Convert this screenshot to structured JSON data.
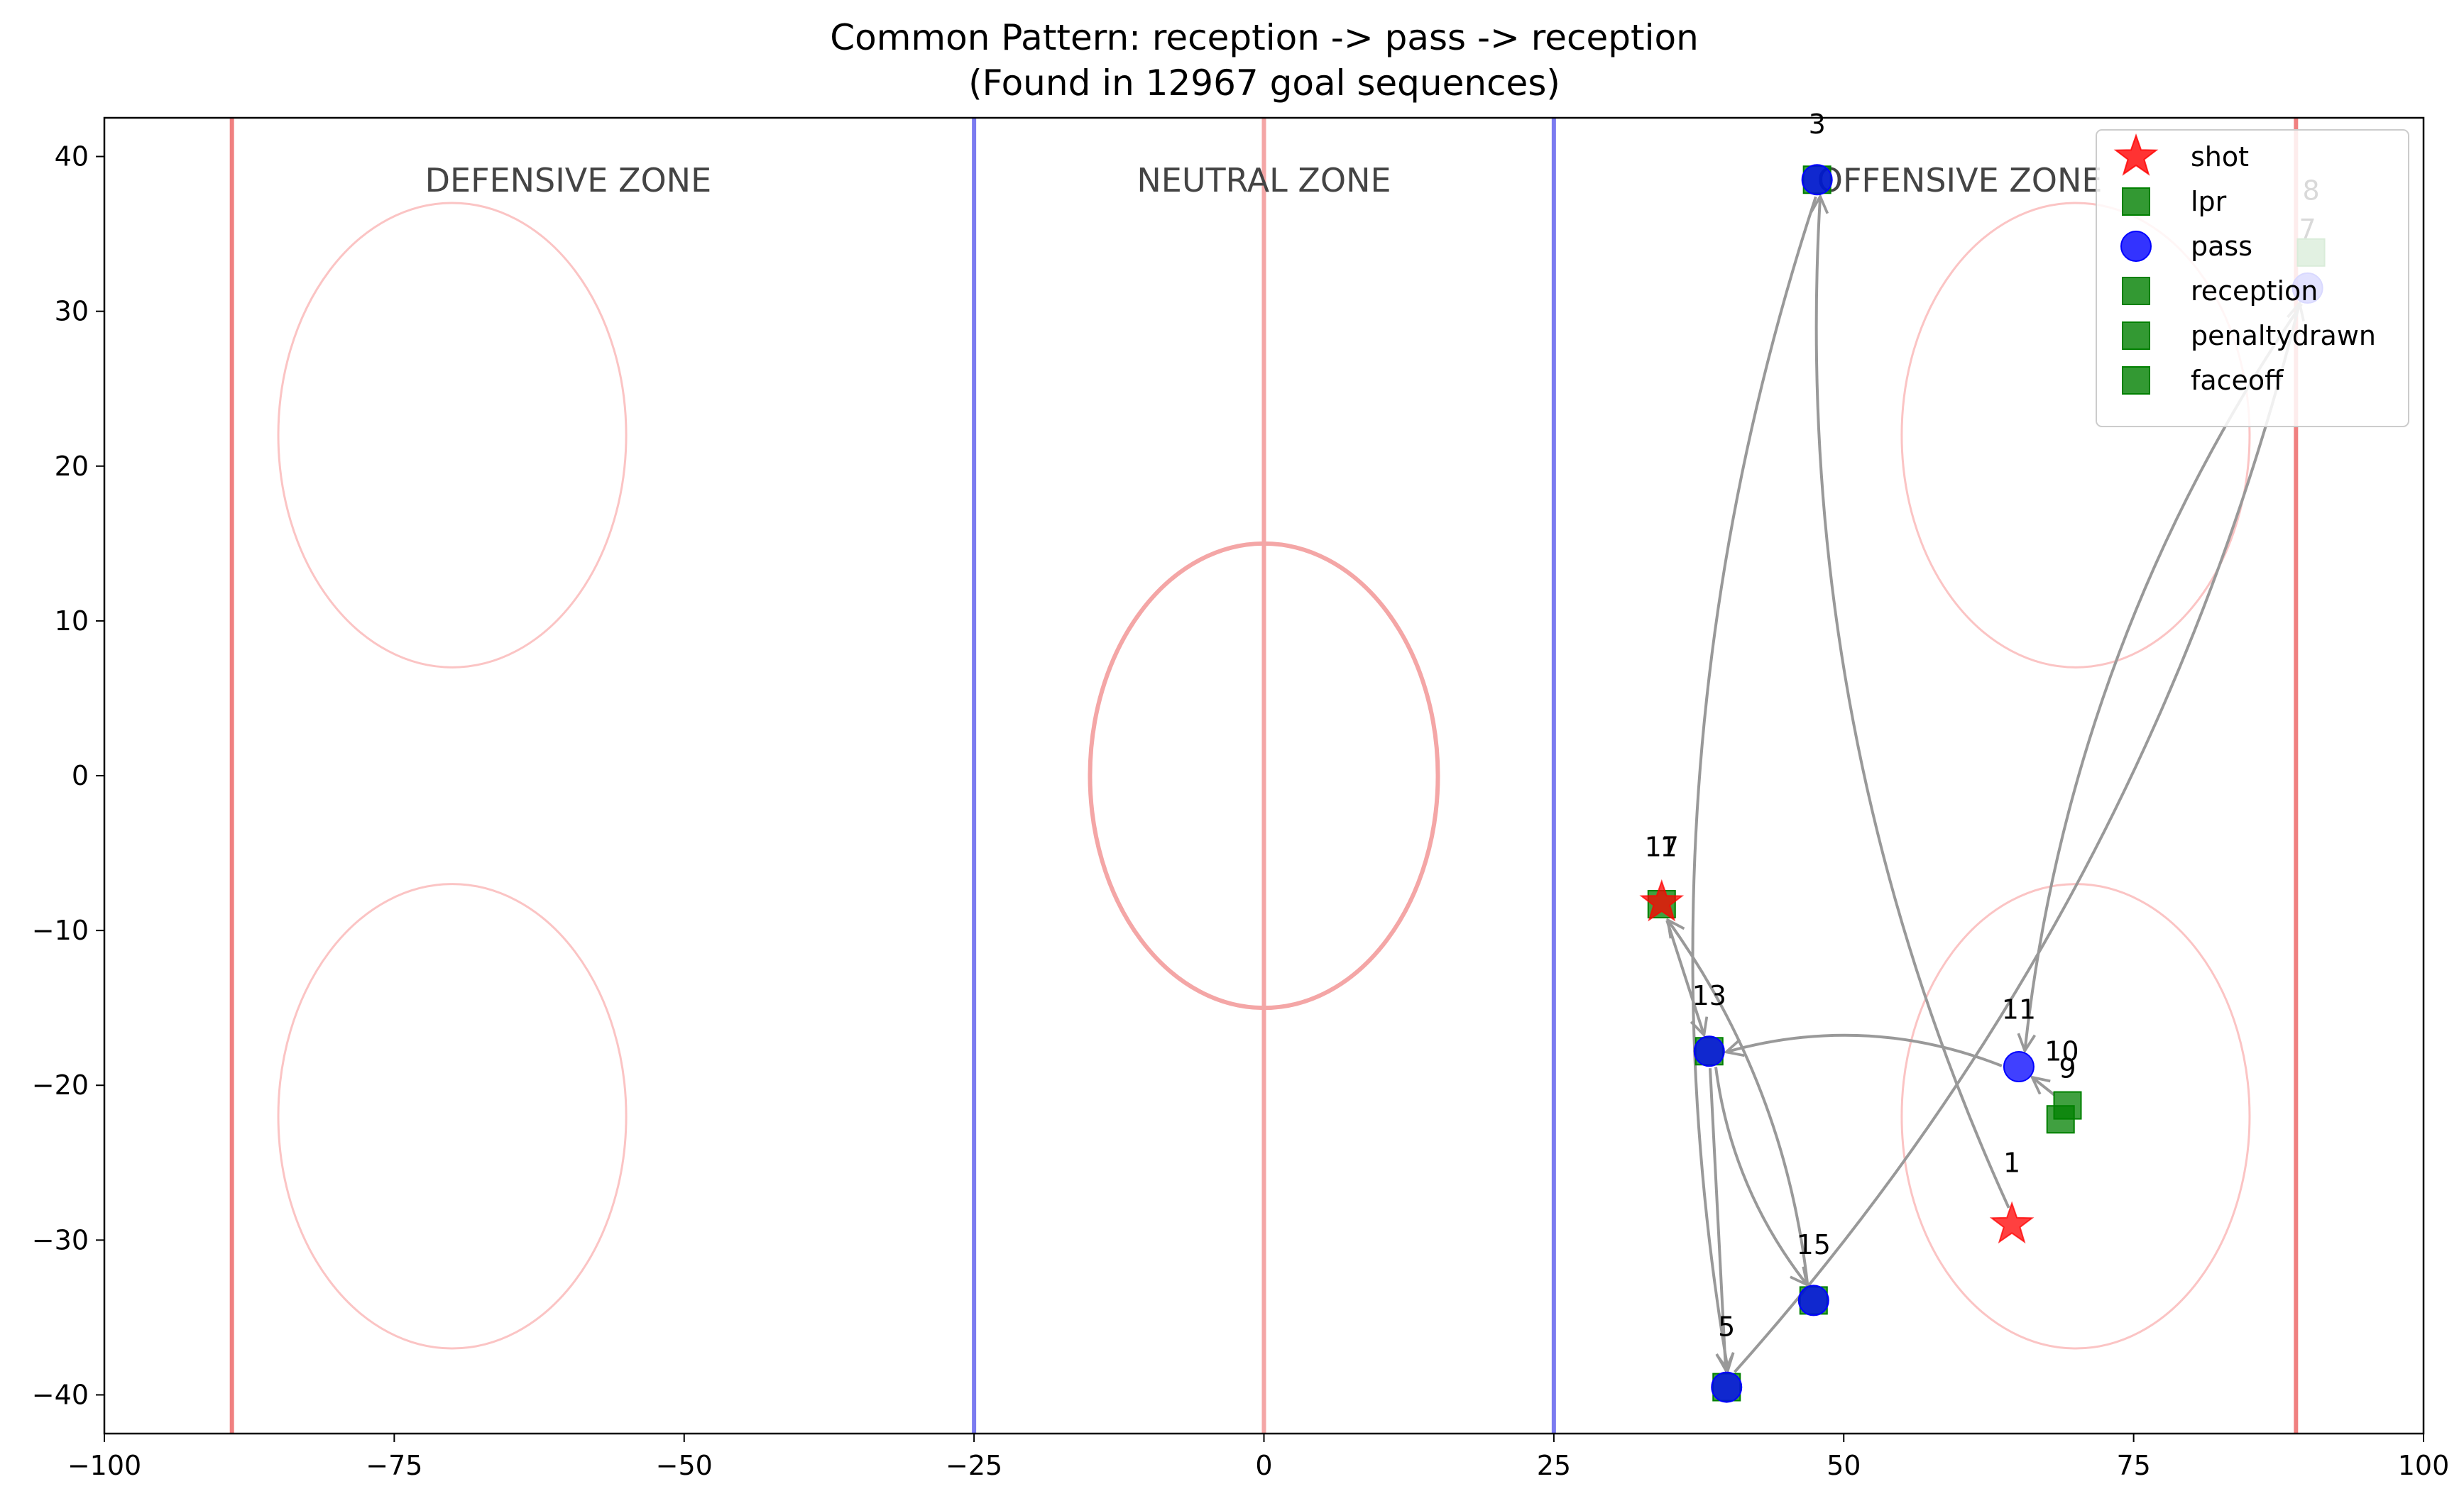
{
  "chart_data": {
    "type": "scatter",
    "title": "Common Pattern: reception -> pass -> reception",
    "subtitle": "(Found in 12967 goal sequences)",
    "xlabel": "",
    "ylabel": "",
    "xlim": [
      -100,
      100
    ],
    "ylim": [
      -42.5,
      42.5
    ],
    "x_ticks": [
      -100,
      -75,
      -50,
      -25,
      0,
      25,
      50,
      75,
      100
    ],
    "y_ticks": [
      -40,
      -30,
      -20,
      -10,
      0,
      10,
      20,
      30,
      40
    ],
    "x_tick_labels": [
      "−100",
      "−75",
      "−50",
      "−25",
      "0",
      "25",
      "50",
      "75",
      "100"
    ],
    "y_tick_labels": [
      "−40",
      "−30",
      "−20",
      "−10",
      "0",
      "10",
      "20",
      "30",
      "40"
    ],
    "grid": false,
    "legend_position": "top-right",
    "rink": {
      "goal_lines_x": [
        -89,
        89
      ],
      "blue_lines_x": [
        -25,
        25
      ],
      "center_line_x": 0,
      "center_circle": {
        "cx": 0,
        "cy": 0,
        "r": 15
      },
      "faceoff_circles": [
        {
          "cx": -70,
          "cy": 22,
          "r": 15
        },
        {
          "cx": -70,
          "cy": -22,
          "r": 15
        },
        {
          "cx": 70,
          "cy": 22,
          "r": 15
        },
        {
          "cx": 70,
          "cy": -22,
          "r": 15
        }
      ],
      "zone_labels": [
        {
          "text": "DEFENSIVE ZONE",
          "x": -60,
          "y": 38.5
        },
        {
          "text": "NEUTRAL ZONE",
          "x": 0,
          "y": 38.5
        },
        {
          "text": "OFFENSIVE ZONE",
          "x": 60,
          "y": 38.5
        }
      ],
      "colors": {
        "goal_line": "#f08080",
        "blue_line": "#7b7bf0",
        "center_line": "#f4a6a6",
        "center_circle": "#f4a6a6",
        "faceoff_circle": "#fbc4c4",
        "zone_label": "#444444"
      }
    },
    "series": [
      {
        "name": "shot",
        "marker": "star",
        "color": "#ff0000"
      },
      {
        "name": "lpr",
        "marker": "square",
        "color": "#008000"
      },
      {
        "name": "pass",
        "marker": "circle",
        "color": "#0000ff"
      },
      {
        "name": "reception",
        "marker": "square",
        "color": "#008000"
      },
      {
        "name": "penaltydrawn",
        "marker": "square",
        "color": "#008000"
      },
      {
        "name": "faceoff",
        "marker": "square",
        "color": "#008000"
      }
    ],
    "points": [
      {
        "x": 64.5,
        "y": -29,
        "type": "shot"
      },
      {
        "x": 47.7,
        "y": 38.5,
        "type": "reception"
      },
      {
        "x": 47.7,
        "y": 38.5,
        "type": "pass"
      },
      {
        "x": 39.9,
        "y": -39.5,
        "type": "reception"
      },
      {
        "x": 39.9,
        "y": -39.5,
        "type": "pass"
      },
      {
        "x": 90.3,
        "y": 33.8,
        "type": "reception"
      },
      {
        "x": 90,
        "y": 31.5,
        "type": "pass"
      },
      {
        "x": 69.3,
        "y": -21.3,
        "type": "reception"
      },
      {
        "x": 68.7,
        "y": -22.2,
        "type": "faceoff"
      },
      {
        "x": 65.1,
        "y": -18.8,
        "type": "pass"
      },
      {
        "x": 38.4,
        "y": -17.8,
        "type": "reception"
      },
      {
        "x": 38.4,
        "y": -17.8,
        "type": "pass"
      },
      {
        "x": 47.4,
        "y": -33.9,
        "type": "reception"
      },
      {
        "x": 47.4,
        "y": -33.9,
        "type": "pass"
      },
      {
        "x": 34.3,
        "y": -8.3,
        "type": "reception"
      },
      {
        "x": 34.3,
        "y": -8.2,
        "type": "shot"
      }
    ],
    "arrows": [
      {
        "from": [
          64.5,
          -29
        ],
        "to": [
          47.7,
          38.5
        ],
        "curve": -0.12
      },
      {
        "from": [
          47.7,
          38.5
        ],
        "to": [
          39.9,
          -39.5
        ],
        "curve": 0.12
      },
      {
        "from": [
          39.9,
          -39.5
        ],
        "to": [
          90,
          31.5
        ],
        "curve": 0.12
      },
      {
        "from": [
          90,
          31.5
        ],
        "to": [
          65.1,
          -18.8
        ],
        "curve": 0.12
      },
      {
        "from": [
          69.3,
          -21.3
        ],
        "to": [
          65.1,
          -18.8
        ],
        "curve": 0
      },
      {
        "from": [
          65.1,
          -18.8
        ],
        "to": [
          38.4,
          -17.8
        ],
        "curve": 0.15
      },
      {
        "from": [
          38.4,
          -17.8
        ],
        "to": [
          47.4,
          -33.9
        ],
        "curve": 0.12
      },
      {
        "from": [
          47.4,
          -33.9
        ],
        "to": [
          34.3,
          -8.3
        ],
        "curve": 0.12
      },
      {
        "from": [
          34.3,
          -8.3
        ],
        "to": [
          38.4,
          -17.8
        ],
        "curve": 0
      },
      {
        "from": [
          38.4,
          -17.8
        ],
        "to": [
          39.9,
          -39.5
        ],
        "curve": 0
      }
    ],
    "annotations": [
      {
        "text": "1",
        "x": 64.5,
        "y": -25.6
      },
      {
        "text": "3",
        "x": 47.7,
        "y": 41.5
      },
      {
        "text": "5",
        "x": 39.9,
        "y": -36.2
      },
      {
        "text": "8",
        "x": 90.3,
        "y": 37.2
      },
      {
        "text": "7",
        "x": 90,
        "y": 34.7
      },
      {
        "text": "9",
        "x": 69.3,
        "y": -19.5
      },
      {
        "text": "10",
        "x": 68.8,
        "y": -18.4
      },
      {
        "text": "11",
        "x": 65.1,
        "y": -15.7
      },
      {
        "text": "13",
        "x": 38.4,
        "y": -14.8
      },
      {
        "text": "15",
        "x": 47.4,
        "y": -30.9
      },
      {
        "text": "17",
        "x": 34.3,
        "y": -5.2
      },
      {
        "text": "1",
        "x": 34.9,
        "y": -5.2
      }
    ]
  }
}
